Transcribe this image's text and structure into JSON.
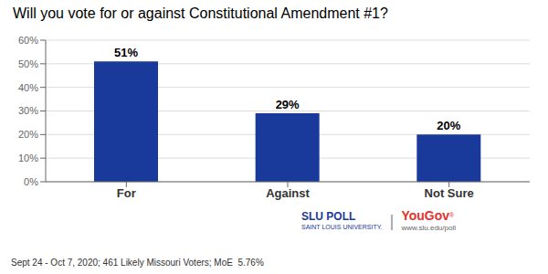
{
  "chart_data": {
    "type": "bar",
    "title": "Will you vote for or against Constitutional Amendment #1?",
    "categories": [
      "For",
      "Against",
      "Not Sure"
    ],
    "values": [
      51,
      29,
      20
    ],
    "value_labels": [
      "51%",
      "29%",
      "20%"
    ],
    "data_labels": true,
    "color": "#1a3a9b",
    "ylim": [
      0,
      60
    ],
    "yticks": [
      {
        "value": 0,
        "label": "0%"
      },
      {
        "value": 10,
        "label": "10%"
      },
      {
        "value": 20,
        "label": "20%"
      },
      {
        "value": 30,
        "label": "30%"
      },
      {
        "value": 40,
        "label": "40%"
      },
      {
        "value": 50,
        "label": "50%"
      },
      {
        "value": 60,
        "label": "60%"
      }
    ],
    "grid": true,
    "annotations": [
      {
        "text": "Sept 24 - Oct 7, 2020; 461 Likely Missouri Voters; MoE  5.76%",
        "color": "#333333"
      },
      {
        "text": "SLU ",
        "color": "#1a3a9b"
      },
      {
        "text": "POLL",
        "color": "#1a3a9b"
      },
      {
        "text": "SAINT LOUIS UNIVERSITY.",
        "color": "#1a3a9b"
      },
      {
        "text": "|",
        "color": "#999999"
      },
      {
        "text": "YouGov",
        "color": "#e8312a"
      },
      {
        "text": "®",
        "color": "#e8312a"
      },
      {
        "text": "www.slu.edu/poll",
        "color": "#666666"
      }
    ]
  }
}
